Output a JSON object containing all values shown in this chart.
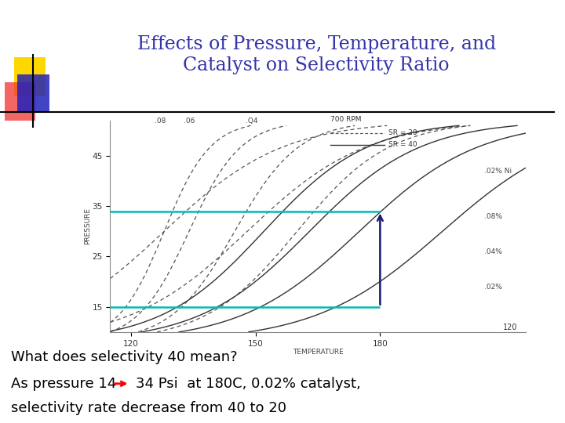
{
  "title_line1": "Effects of Pressure, Temperature, and",
  "title_line2": "Catalyst on Selectivity Ratio",
  "title_color": "#3333AA",
  "title_fontsize": 17,
  "body_text1": "What does selectivity 40 mean?",
  "body_text2": "As pressure 14",
  "body_text2b": "34 Psi  at 180C, 0.02% catalyst,",
  "body_text3": "selectivity rate decrease from 40 to 20",
  "body_fontsize": 13,
  "background_color": "#FFFFFF",
  "logo_colors": {
    "yellow": "#FFD700",
    "red": "#EE3333",
    "blue": "#2222BB"
  },
  "arrow_color": "#1a1a6e",
  "hline_color": "#00BBBB",
  "chart_border_color": "#888888",
  "sr20_color": "#555555",
  "sr40_color": "#333333",
  "label_color": "#444444"
}
